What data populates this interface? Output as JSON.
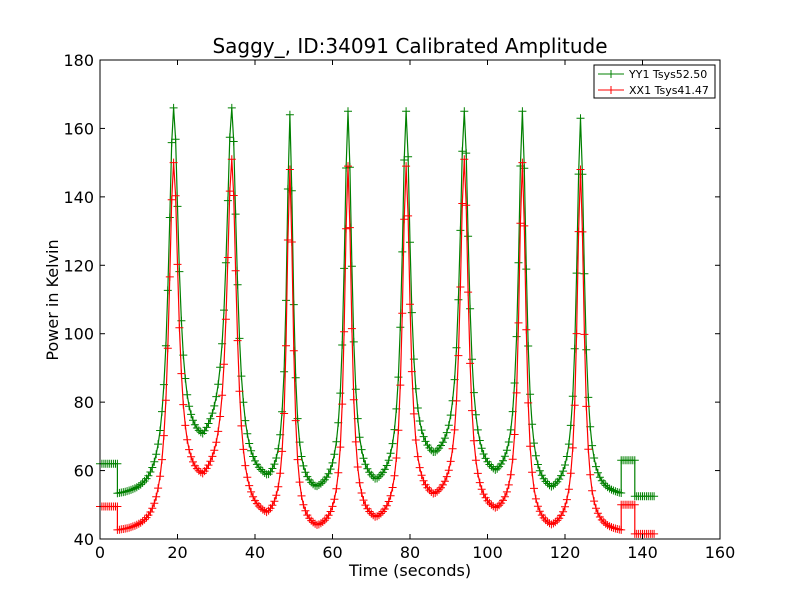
{
  "chart_data": {
    "type": "line",
    "title": "Saggy_, ID:34091 Calibrated Amplitude",
    "xlabel": "Time (seconds)",
    "ylabel": "Power in Kelvin",
    "xlim": [
      0,
      160
    ],
    "ylim": [
      40,
      180
    ],
    "xticks": [
      "0",
      "20",
      "40",
      "60",
      "80",
      "100",
      "120",
      "140",
      "160"
    ],
    "yticks": [
      "40",
      "60",
      "80",
      "100",
      "120",
      "140",
      "160",
      "180"
    ],
    "grid": false,
    "legend_position": "top-right",
    "sample_step": 0.5,
    "series": [
      {
        "name": "YY1 Tsys52.50",
        "color": "#008000",
        "marker": "+",
        "segments": [
          {
            "x_start": 0,
            "x_end": 4.5,
            "level": 62
          },
          {
            "x_start": 4.5,
            "x_end": 134.5,
            "baseline": 52,
            "humps": [
              {
                "x_start": 19,
                "x_end": 34,
                "floor": 63,
                "rise": 7
              },
              {
                "x_start": 34,
                "x_end": 49,
                "floor": 55.5,
                "rise": 0
              },
              {
                "x_start": 49,
                "x_end": 64,
                "floor": 53,
                "rise": 0
              },
              {
                "x_start": 64,
                "x_end": 79,
                "floor": 54.5,
                "rise": 0
              },
              {
                "x_start": 79,
                "x_end": 94,
                "floor": 62,
                "rise": 0
              },
              {
                "x_start": 94,
                "x_end": 109,
                "floor": 57,
                "rise": 0
              },
              {
                "x_start": 109,
                "x_end": 124,
                "floor": 52.5,
                "rise": 0
              }
            ],
            "peaks": [
              {
                "x": 19,
                "y": 166,
                "width": 1.6
              },
              {
                "x": 34,
                "y": 166,
                "width": 1.6
              },
              {
                "x": 49,
                "y": 164,
                "width": 1.0
              },
              {
                "x": 64,
                "y": 165,
                "width": 1.2
              },
              {
                "x": 79,
                "y": 165,
                "width": 1.3
              },
              {
                "x": 94,
                "y": 165,
                "width": 1.4
              },
              {
                "x": 109,
                "y": 165,
                "width": 1.2
              },
              {
                "x": 124,
                "y": 163,
                "width": 1.2
              }
            ]
          },
          {
            "x_start": 134.5,
            "x_end": 138,
            "level": 63
          },
          {
            "x_start": 138,
            "x_end": 143,
            "level": 52.5
          }
        ]
      },
      {
        "name": "XX1 Tsys41.47",
        "color": "#ff0000",
        "marker": "+",
        "segments": [
          {
            "x_start": 0,
            "x_end": 4.5,
            "level": 49.5
          },
          {
            "x_start": 4.5,
            "x_end": 134.5,
            "baseline": 41.5,
            "humps": [
              {
                "x_start": 19,
                "x_end": 34,
                "floor": 53,
                "rise": 5
              },
              {
                "x_start": 34,
                "x_end": 49,
                "floor": 45,
                "rise": 0
              },
              {
                "x_start": 49,
                "x_end": 64,
                "floor": 42,
                "rise": 0
              },
              {
                "x_start": 64,
                "x_end": 79,
                "floor": 44,
                "rise": 0
              },
              {
                "x_start": 79,
                "x_end": 94,
                "floor": 50.5,
                "rise": 0
              },
              {
                "x_start": 94,
                "x_end": 109,
                "floor": 46.5,
                "rise": 0
              },
              {
                "x_start": 109,
                "x_end": 124,
                "floor": 42,
                "rise": 0
              }
            ],
            "peaks": [
              {
                "x": 19,
                "y": 150,
                "width": 1.5
              },
              {
                "x": 34,
                "y": 151,
                "width": 1.5
              },
              {
                "x": 49,
                "y": 148,
                "width": 1.0
              },
              {
                "x": 64,
                "y": 149,
                "width": 1.1
              },
              {
                "x": 79,
                "y": 149,
                "width": 1.2
              },
              {
                "x": 94,
                "y": 151,
                "width": 1.3
              },
              {
                "x": 109,
                "y": 150,
                "width": 1.1
              },
              {
                "x": 124,
                "y": 148,
                "width": 1.1
              }
            ]
          },
          {
            "x_start": 134.5,
            "x_end": 138,
            "level": 50
          },
          {
            "x_start": 138,
            "x_end": 143,
            "level": 41.5
          }
        ]
      }
    ]
  }
}
